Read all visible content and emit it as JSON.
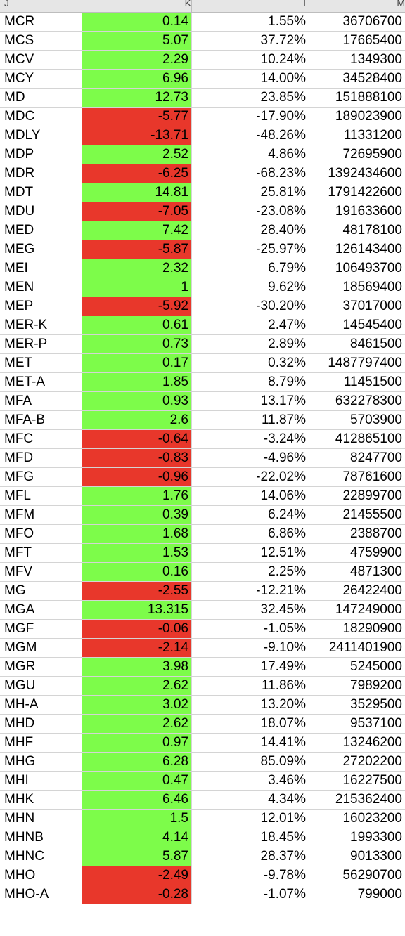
{
  "sheet": {
    "columns": [
      "J",
      "K",
      "L",
      "M"
    ],
    "colors": {
      "positive": "#7dfc4a",
      "negative": "#e8372b"
    },
    "rows": [
      {
        "symbol": "MCR",
        "change": "0.14",
        "pct": "1.55%",
        "volume": "36706700",
        "sign": "pos"
      },
      {
        "symbol": "MCS",
        "change": "5.07",
        "pct": "37.72%",
        "volume": "17665400",
        "sign": "pos"
      },
      {
        "symbol": "MCV",
        "change": "2.29",
        "pct": "10.24%",
        "volume": "1349300",
        "sign": "pos"
      },
      {
        "symbol": "MCY",
        "change": "6.96",
        "pct": "14.00%",
        "volume": "34528400",
        "sign": "pos"
      },
      {
        "symbol": "MD",
        "change": "12.73",
        "pct": "23.85%",
        "volume": "151888100",
        "sign": "pos"
      },
      {
        "symbol": "MDC",
        "change": "-5.77",
        "pct": "-17.90%",
        "volume": "189023900",
        "sign": "neg"
      },
      {
        "symbol": "MDLY",
        "change": "-13.71",
        "pct": "-48.26%",
        "volume": "11331200",
        "sign": "neg"
      },
      {
        "symbol": "MDP",
        "change": "2.52",
        "pct": "4.86%",
        "volume": "72695900",
        "sign": "pos"
      },
      {
        "symbol": "MDR",
        "change": "-6.25",
        "pct": "-68.23%",
        "volume": "1392434600",
        "sign": "neg"
      },
      {
        "symbol": "MDT",
        "change": "14.81",
        "pct": "25.81%",
        "volume": "1791422600",
        "sign": "pos"
      },
      {
        "symbol": "MDU",
        "change": "-7.05",
        "pct": "-23.08%",
        "volume": "191633600",
        "sign": "neg"
      },
      {
        "symbol": "MED",
        "change": "7.42",
        "pct": "28.40%",
        "volume": "48178100",
        "sign": "pos"
      },
      {
        "symbol": "MEG",
        "change": "-5.87",
        "pct": "-25.97%",
        "volume": "126143400",
        "sign": "neg"
      },
      {
        "symbol": "MEI",
        "change": "2.32",
        "pct": "6.79%",
        "volume": "106493700",
        "sign": "pos"
      },
      {
        "symbol": "MEN",
        "change": "1",
        "pct": "9.62%",
        "volume": "18569400",
        "sign": "pos"
      },
      {
        "symbol": "MEP",
        "change": "-5.92",
        "pct": "-30.20%",
        "volume": "37017000",
        "sign": "neg"
      },
      {
        "symbol": "MER-K",
        "change": "0.61",
        "pct": "2.47%",
        "volume": "14545400",
        "sign": "pos"
      },
      {
        "symbol": "MER-P",
        "change": "0.73",
        "pct": "2.89%",
        "volume": "8461500",
        "sign": "pos"
      },
      {
        "symbol": "MET",
        "change": "0.17",
        "pct": "0.32%",
        "volume": "1487797400",
        "sign": "pos"
      },
      {
        "symbol": "MET-A",
        "change": "1.85",
        "pct": "8.79%",
        "volume": "11451500",
        "sign": "pos"
      },
      {
        "symbol": "MFA",
        "change": "0.93",
        "pct": "13.17%",
        "volume": "632278300",
        "sign": "pos"
      },
      {
        "symbol": "MFA-B",
        "change": "2.6",
        "pct": "11.87%",
        "volume": "5703900",
        "sign": "pos"
      },
      {
        "symbol": "MFC",
        "change": "-0.64",
        "pct": "-3.24%",
        "volume": "412865100",
        "sign": "neg"
      },
      {
        "symbol": "MFD",
        "change": "-0.83",
        "pct": "-4.96%",
        "volume": "8247700",
        "sign": "neg"
      },
      {
        "symbol": "MFG",
        "change": "-0.96",
        "pct": "-22.02%",
        "volume": "78761600",
        "sign": "neg"
      },
      {
        "symbol": "MFL",
        "change": "1.76",
        "pct": "14.06%",
        "volume": "22899700",
        "sign": "pos"
      },
      {
        "symbol": "MFM",
        "change": "0.39",
        "pct": "6.24%",
        "volume": "21455500",
        "sign": "pos"
      },
      {
        "symbol": "MFO",
        "change": "1.68",
        "pct": "6.86%",
        "volume": "2388700",
        "sign": "pos"
      },
      {
        "symbol": "MFT",
        "change": "1.53",
        "pct": "12.51%",
        "volume": "4759900",
        "sign": "pos"
      },
      {
        "symbol": "MFV",
        "change": "0.16",
        "pct": "2.25%",
        "volume": "4871300",
        "sign": "pos"
      },
      {
        "symbol": "MG",
        "change": "-2.55",
        "pct": "-12.21%",
        "volume": "26422400",
        "sign": "neg"
      },
      {
        "symbol": "MGA",
        "change": "13.315",
        "pct": "32.45%",
        "volume": "147249000",
        "sign": "pos"
      },
      {
        "symbol": "MGF",
        "change": "-0.06",
        "pct": "-1.05%",
        "volume": "18290900",
        "sign": "neg"
      },
      {
        "symbol": "MGM",
        "change": "-2.14",
        "pct": "-9.10%",
        "volume": "2411401900",
        "sign": "neg"
      },
      {
        "symbol": "MGR",
        "change": "3.98",
        "pct": "17.49%",
        "volume": "5245000",
        "sign": "pos"
      },
      {
        "symbol": "MGU",
        "change": "2.62",
        "pct": "11.86%",
        "volume": "7989200",
        "sign": "pos"
      },
      {
        "symbol": "MH-A",
        "change": "3.02",
        "pct": "13.20%",
        "volume": "3529500",
        "sign": "pos"
      },
      {
        "symbol": "MHD",
        "change": "2.62",
        "pct": "18.07%",
        "volume": "9537100",
        "sign": "pos"
      },
      {
        "symbol": "MHF",
        "change": "0.97",
        "pct": "14.41%",
        "volume": "13246200",
        "sign": "pos"
      },
      {
        "symbol": "MHG",
        "change": "6.28",
        "pct": "85.09%",
        "volume": "27202200",
        "sign": "pos"
      },
      {
        "symbol": "MHI",
        "change": "0.47",
        "pct": "3.46%",
        "volume": "16227500",
        "sign": "pos"
      },
      {
        "symbol": "MHK",
        "change": "6.46",
        "pct": "4.34%",
        "volume": "215362400",
        "sign": "pos"
      },
      {
        "symbol": "MHN",
        "change": "1.5",
        "pct": "12.01%",
        "volume": "16023200",
        "sign": "pos"
      },
      {
        "symbol": "MHNB",
        "change": "4.14",
        "pct": "18.45%",
        "volume": "1993300",
        "sign": "pos"
      },
      {
        "symbol": "MHNC",
        "change": "5.87",
        "pct": "28.37%",
        "volume": "9013300",
        "sign": "pos"
      },
      {
        "symbol": "MHO",
        "change": "-2.49",
        "pct": "-9.78%",
        "volume": "56290700",
        "sign": "neg"
      },
      {
        "symbol": "MHO-A",
        "change": "-0.28",
        "pct": "-1.07%",
        "volume": "799000",
        "sign": "neg"
      }
    ]
  }
}
